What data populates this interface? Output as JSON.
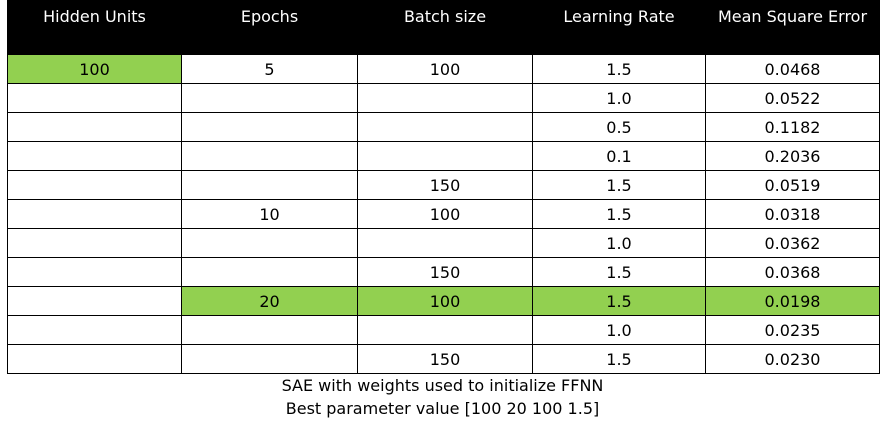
{
  "table": {
    "headers": [
      "Hidden Units",
      "Epochs",
      "Batch size",
      "Learning Rate",
      "Mean Square Error"
    ],
    "highlight_color": "#92d050",
    "header_bg": "#000000",
    "rows": [
      {
        "cells": [
          "100",
          "5",
          "100",
          "1.5",
          "0.0468"
        ],
        "highlight": [
          true,
          false,
          false,
          false,
          false
        ]
      },
      {
        "cells": [
          "",
          "",
          "",
          "1.0",
          "0.0522"
        ],
        "highlight": [
          false,
          false,
          false,
          false,
          false
        ]
      },
      {
        "cells": [
          "",
          "",
          "",
          "0.5",
          "0.1182"
        ],
        "highlight": [
          false,
          false,
          false,
          false,
          false
        ]
      },
      {
        "cells": [
          "",
          "",
          "",
          "0.1",
          "0.2036"
        ],
        "highlight": [
          false,
          false,
          false,
          false,
          false
        ]
      },
      {
        "cells": [
          "",
          "",
          "150",
          "1.5",
          "0.0519"
        ],
        "highlight": [
          false,
          false,
          false,
          false,
          false
        ]
      },
      {
        "cells": [
          "",
          "10",
          "100",
          "1.5",
          "0.0318"
        ],
        "highlight": [
          false,
          false,
          false,
          false,
          false
        ]
      },
      {
        "cells": [
          "",
          "",
          "",
          "1.0",
          "0.0362"
        ],
        "highlight": [
          false,
          false,
          false,
          false,
          false
        ]
      },
      {
        "cells": [
          "",
          "",
          "150",
          "1.5",
          "0.0368"
        ],
        "highlight": [
          false,
          false,
          false,
          false,
          false
        ]
      },
      {
        "cells": [
          "",
          "20",
          "100",
          "1.5",
          "0.0198"
        ],
        "highlight": [
          false,
          true,
          true,
          true,
          true
        ]
      },
      {
        "cells": [
          "",
          "",
          "",
          "1.0",
          "0.0235"
        ],
        "highlight": [
          false,
          false,
          false,
          false,
          false
        ]
      },
      {
        "cells": [
          "",
          "",
          "150",
          "1.5",
          "0.0230"
        ],
        "highlight": [
          false,
          false,
          false,
          false,
          false
        ]
      }
    ]
  },
  "caption": {
    "line1": "SAE with weights used to initialize FFNN",
    "line2": "Best parameter value [100 20 100 1.5]"
  }
}
